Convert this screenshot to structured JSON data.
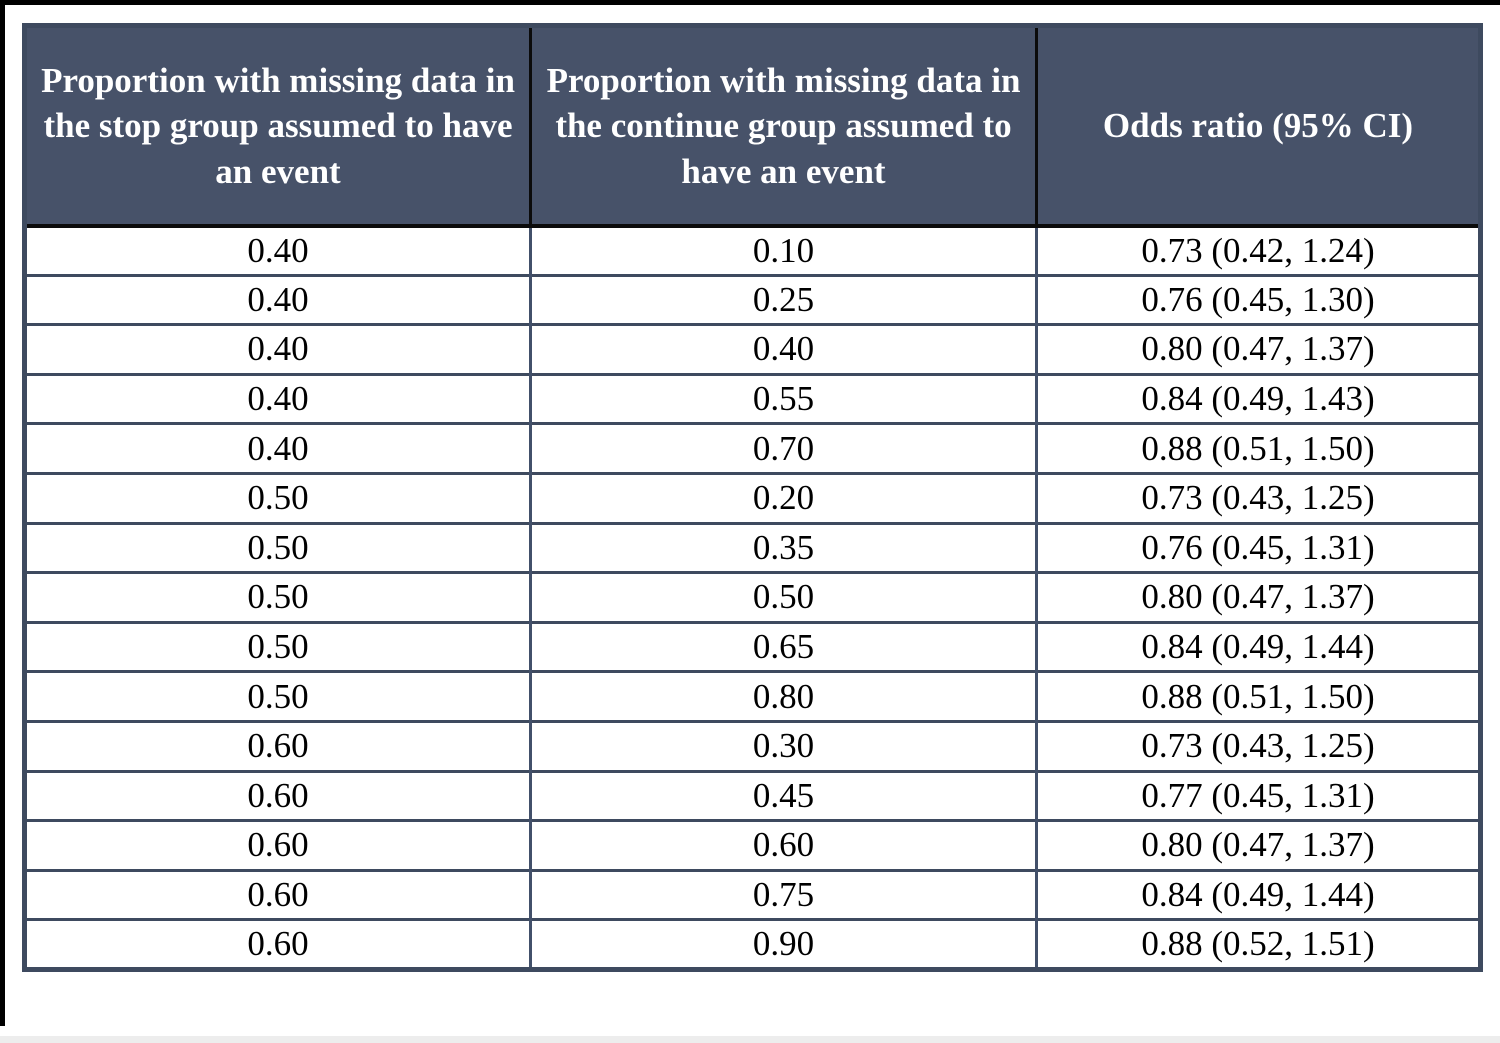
{
  "chart_data": {
    "type": "table",
    "title": "",
    "columns": [
      {
        "label": "Proportion with missing data in the stop group assumed to have an event"
      },
      {
        "label": "Proportion with missing data in the continue group assumed to have an event"
      },
      {
        "label": "Odds ratio (95% CI)"
      }
    ],
    "rows": [
      [
        "0.40",
        "0.10",
        "0.73 (0.42, 1.24)"
      ],
      [
        "0.40",
        "0.25",
        "0.76 (0.45, 1.30)"
      ],
      [
        "0.40",
        "0.40",
        "0.80 (0.47, 1.37)"
      ],
      [
        "0.40",
        "0.55",
        "0.84 (0.49, 1.43)"
      ],
      [
        "0.40",
        "0.70",
        "0.88 (0.51, 1.50)"
      ],
      [
        "0.50",
        "0.20",
        "0.73 (0.43, 1.25)"
      ],
      [
        "0.50",
        "0.35",
        "0.76 (0.45, 1.31)"
      ],
      [
        "0.50",
        "0.50",
        "0.80 (0.47, 1.37)"
      ],
      [
        "0.50",
        "0.65",
        "0.84 (0.49, 1.44)"
      ],
      [
        "0.50",
        "0.80",
        "0.88 (0.51, 1.50)"
      ],
      [
        "0.60",
        "0.30",
        "0.73 (0.43, 1.25)"
      ],
      [
        "0.60",
        "0.45",
        "0.77 (0.45, 1.31)"
      ],
      [
        "0.60",
        "0.60",
        "0.80 (0.47, 1.37)"
      ],
      [
        "0.60",
        "0.75",
        "0.84 (0.49, 1.44)"
      ],
      [
        "0.60",
        "0.90",
        "0.88 (0.52, 1.51)"
      ]
    ],
    "layout": {
      "grid": "on",
      "header_position": "top"
    },
    "colors": {
      "header_background": "#475269",
      "header_text": "#ffffff",
      "header_separator": "#0b0b0b",
      "body_background": "#ffffff",
      "body_text": "#000000",
      "grid_border": "#3e4a5f",
      "outer_frame": "#000000",
      "bottom_strip": "#ededed"
    }
  }
}
